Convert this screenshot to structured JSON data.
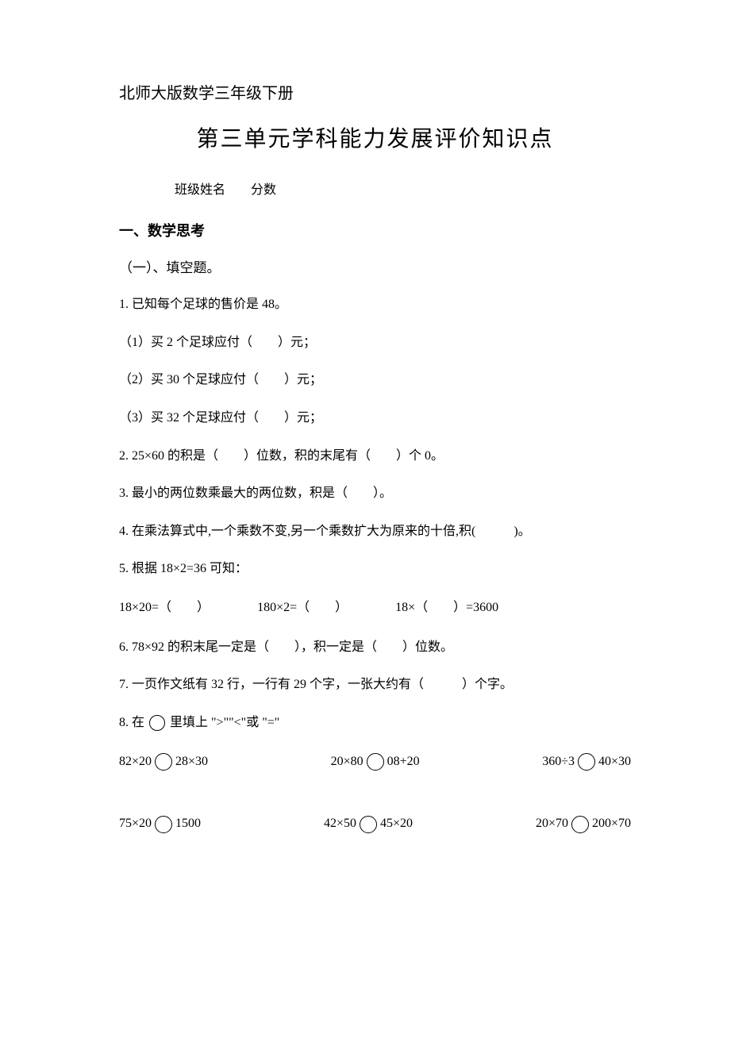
{
  "header": "北师大版数学三年级下册",
  "title": "第三单元学科能力发展评价知识点",
  "info": "班级姓名　　分数",
  "section1": {
    "heading": "一、数学思考",
    "sub": "（一）、填空题。"
  },
  "q1": {
    "stem": "1. 已知每个足球的售价是 48。",
    "s1": "（1）买 2 个足球应付（　　）元；",
    "s2": "（2）买 30 个足球应付（　　）元；",
    "s3": "（3）买 32 个足球应付（　　）元；"
  },
  "q2": "2. 25×60 的积是（　　）位数，积的末尾有（　　）个 0。",
  "q3": "3. 最小的两位数乘最大的两位数，积是（　　）。",
  "q4": "4. 在乘法算式中,一个乘数不变,另一个乘数扩大为原来的十倍,积(　　　)。",
  "q5": {
    "stem": "5. 根据 18×2=36 可知：",
    "a": "18×20=（　　）",
    "b": "180×2=（　　）",
    "c": "18×（　　）=3600"
  },
  "q6": "6. 78×92 的积末尾一定是（　　），积一定是（　　）位数。",
  "q7": "7. 一页作文纸有 32 行，一行有 29 个字，一张大约有（　　　）个字。",
  "q8": {
    "stem_prefix": "8. 在",
    "stem_suffix": "里填上 \">\"\"<\"或 \"=\"",
    "r1a_left": "82×20",
    "r1a_right": "28×30",
    "r1b_left": "20×80",
    "r1b_right": "08+20",
    "r1c_left": "360÷3",
    "r1c_right": "40×30",
    "r2a_left": "75×20",
    "r2a_right": "1500",
    "r2b_left": "42×50",
    "r2b_right": "45×20",
    "r2c_left": "20×70",
    "r2c_right": "200×70"
  }
}
